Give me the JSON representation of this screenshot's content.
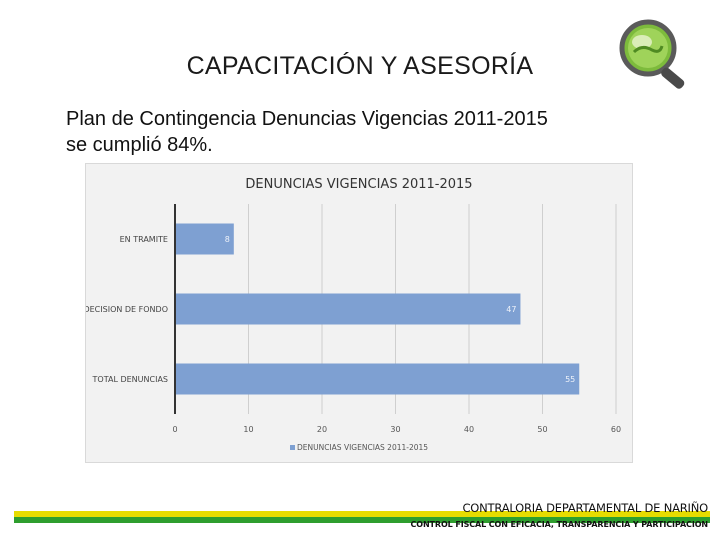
{
  "slide": {
    "title": "CAPACITACIÓN Y ASESORÍA",
    "body_line1": "Plan de Contingencia Denuncias Vigencias 2011-2015",
    "body_line2": "se cumplió 84%."
  },
  "footer": {
    "org": "CONTRALORIA DEPARTAMENTAL DE NARIÑO",
    "tagline": "CONTROL FISCAL CON EFICACIA, TRANSPARENCIA Y PARTICIPACION"
  },
  "colors": {
    "bar": "#7ea0d2",
    "footer_yellow": "#e6dc00",
    "footer_green": "#2e9e2e"
  },
  "chart_data": {
    "type": "bar",
    "orientation": "horizontal",
    "title": "DENUNCIAS VIGENCIAS 2011-2015",
    "categories": [
      "EN TRAMITE",
      "DECISION DE FONDO",
      "TOTAL DENUNCIAS"
    ],
    "series": [
      {
        "name": "DENUNCIAS VIGENCIAS 2011-2015",
        "values": [
          8,
          47,
          55
        ]
      }
    ],
    "xlim": [
      0,
      60
    ],
    "xticks": [
      0,
      10,
      20,
      30,
      40,
      50,
      60
    ],
    "grid": true,
    "legend": "bottom"
  }
}
